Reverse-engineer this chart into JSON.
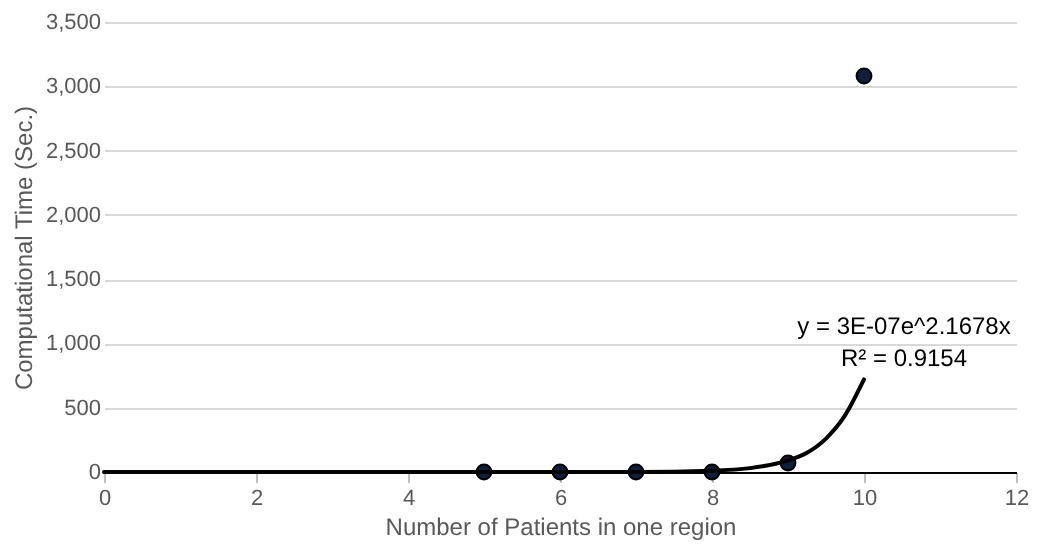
{
  "chart_data": {
    "type": "scatter",
    "xlabel": "Number of Patients in one region",
    "ylabel": "Computational Time (Sec.)",
    "xlim": [
      0,
      12
    ],
    "xticks": [
      0,
      2,
      4,
      6,
      8,
      10,
      12
    ],
    "ylim": [
      0,
      3500
    ],
    "yticks": [
      {
        "value": 0,
        "label": "0"
      },
      {
        "value": 500,
        "label": "500"
      },
      {
        "value": 1000,
        "label": "1,000"
      },
      {
        "value": 1500,
        "label": "1,500"
      },
      {
        "value": 2000,
        "label": "2,000"
      },
      {
        "value": 2500,
        "label": "2,500"
      },
      {
        "value": 3000,
        "label": "3,000"
      },
      {
        "value": 3500,
        "label": "3,500"
      }
    ],
    "grid": "y",
    "series": [
      {
        "marker": "circle",
        "color": "#0d1f3c",
        "x": [
          5,
          6,
          7,
          8,
          9,
          10
        ],
        "values": [
          0,
          0,
          0,
          0,
          70,
          3080
        ]
      },
      {
        "type": "line",
        "color": "#000000",
        "line_style": "solid",
        "x": [
          0,
          2,
          4,
          6,
          7,
          8,
          8.5,
          9,
          9.25,
          9.5,
          9.75,
          10
        ],
        "values": [
          0,
          0,
          0,
          0,
          0,
          10,
          30,
          90,
          150,
          260,
          440,
          720
        ]
      }
    ],
    "annotations": [
      "y = 3E-07e^2.1678x",
      "R² = 0.9154"
    ]
  }
}
